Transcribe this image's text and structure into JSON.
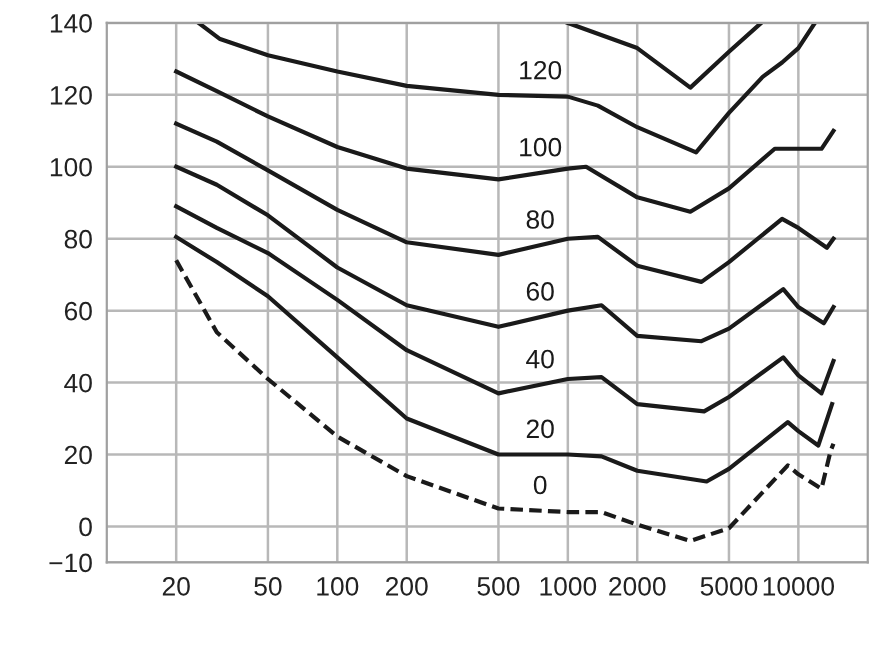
{
  "chart_data": {
    "type": "line",
    "log": "x",
    "grid": true,
    "xlim": [
      10,
      20000
    ],
    "xticks": [
      20,
      50,
      100,
      200,
      500,
      1000,
      2000,
      5000,
      10000
    ],
    "ylim": [
      -10,
      140
    ],
    "yticks": [
      {
        "value": -10,
        "label": "−10"
      },
      0,
      20,
      40,
      60,
      80,
      100,
      120,
      140
    ],
    "series": [
      {
        "name": "0",
        "color": "#1a1a1a",
        "line_style": "dashed",
        "x": [
          20,
          30,
          50,
          100,
          200,
          500,
          1000,
          1400,
          2000,
          3400,
          5000,
          9000,
          10000,
          12600,
          13800,
          14200
        ],
        "values": [
          74,
          54,
          41,
          25,
          14,
          5,
          4,
          4,
          0.5,
          -4,
          -0.5,
          17,
          14.5,
          10.5,
          21,
          23
        ]
      },
      {
        "name": "20",
        "color": "#1a1a1a",
        "x": [
          20,
          30,
          50,
          100,
          200,
          500,
          1000,
          1400,
          2000,
          4000,
          5000,
          9000,
          10000,
          12200,
          14000
        ],
        "values": [
          80.5,
          73.5,
          64,
          47,
          30,
          20,
          20,
          19.5,
          15.5,
          12.5,
          16,
          29,
          26.5,
          22.5,
          34
        ]
      },
      {
        "name": "40",
        "color": "#1a1a1a",
        "x": [
          20,
          30,
          50,
          100,
          200,
          500,
          1000,
          1400,
          2000,
          3900,
          5000,
          8600,
          10000,
          12600,
          14200
        ],
        "values": [
          89,
          83,
          76,
          63,
          49,
          37,
          41,
          41.5,
          34,
          32,
          36,
          47,
          42,
          37,
          46
        ]
      },
      {
        "name": "60",
        "color": "#1a1a1a",
        "x": [
          20,
          30,
          50,
          100,
          200,
          500,
          1000,
          1400,
          2000,
          3800,
          5000,
          8600,
          10000,
          12900,
          14200
        ],
        "values": [
          100,
          95,
          86.5,
          72,
          61.5,
          55.5,
          60,
          61.5,
          53,
          51.5,
          55,
          66,
          61,
          56.5,
          61
        ]
      },
      {
        "name": "80",
        "color": "#1a1a1a",
        "x": [
          20,
          30,
          50,
          100,
          200,
          500,
          1000,
          1350,
          2000,
          3800,
          5000,
          8500,
          10000,
          13300,
          14200
        ],
        "values": [
          112,
          107,
          99,
          88,
          79,
          75.5,
          80,
          80.5,
          72.5,
          68,
          73.5,
          85.5,
          83,
          77.5,
          80
        ]
      },
      {
        "name": "100",
        "color": "#1a1a1a",
        "x": [
          20,
          30,
          50,
          100,
          200,
          500,
          1000,
          1200,
          2000,
          3400,
          5000,
          7900,
          10000,
          12600,
          14200
        ],
        "values": [
          126.5,
          121,
          114,
          105.5,
          99.5,
          96.5,
          99.5,
          100,
          91.5,
          87.5,
          94,
          105,
          105,
          105,
          110
        ]
      },
      {
        "name": "120",
        "color": "#1a1a1a",
        "x": [
          25,
          31,
          50,
          100,
          200,
          500,
          1000,
          1350,
          2000,
          3600,
          5000,
          7000,
          8500,
          10000,
          11800
        ],
        "values": [
          140,
          135.5,
          131,
          126.5,
          122.5,
          120,
          119.5,
          117,
          111,
          104,
          115,
          125,
          129,
          133,
          140
        ]
      },
      {
        "color": "#1a1a1a",
        "x": [
          1000,
          2000,
          3400,
          5000,
          6900
        ],
        "values": [
          140,
          133,
          122,
          132,
          140
        ]
      }
    ]
  }
}
